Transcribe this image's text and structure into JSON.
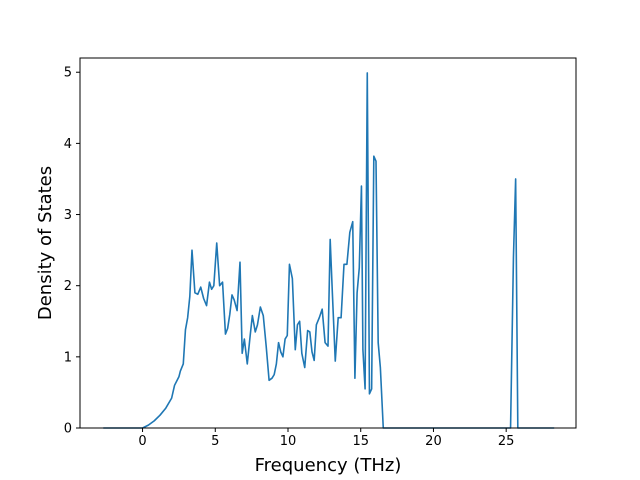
{
  "chart_data": {
    "type": "line",
    "xlabel": "Frequency (THz)",
    "ylabel": "Density of States",
    "xlim": [
      -4.3,
      29.8
    ],
    "ylim": [
      0,
      5.2
    ],
    "xticks": [
      0,
      5,
      10,
      15,
      20,
      25
    ],
    "yticks": [
      0,
      1,
      2,
      3,
      4,
      5
    ],
    "grid": false,
    "series": [
      {
        "color": "#1f77b4",
        "x": [
          -2.7,
          -2.0,
          -1.0,
          0.0,
          0.4,
          0.8,
          1.2,
          1.6,
          2.0,
          2.2,
          2.5,
          2.6,
          2.8,
          2.95,
          3.1,
          3.25,
          3.4,
          3.6,
          3.8,
          4.0,
          4.2,
          4.4,
          4.6,
          4.75,
          4.9,
          5.1,
          5.3,
          5.5,
          5.7,
          5.85,
          6.0,
          6.15,
          6.3,
          6.5,
          6.7,
          6.85,
          7.0,
          7.2,
          7.4,
          7.55,
          7.75,
          7.9,
          8.1,
          8.3,
          8.5,
          8.7,
          8.9,
          9.05,
          9.2,
          9.35,
          9.5,
          9.65,
          9.8,
          9.95,
          10.1,
          10.3,
          10.5,
          10.65,
          10.8,
          10.95,
          11.15,
          11.35,
          11.5,
          11.65,
          11.8,
          11.95,
          12.15,
          12.35,
          12.55,
          12.75,
          12.9,
          13.05,
          13.25,
          13.45,
          13.65,
          13.85,
          14.05,
          14.25,
          14.45,
          14.6,
          14.75,
          14.9,
          15.05,
          15.15,
          15.3,
          15.45,
          15.6,
          15.75,
          15.9,
          16.05,
          16.2,
          16.35,
          16.55,
          16.75,
          17.0,
          20.0,
          23.0,
          25.3,
          25.5,
          25.65,
          25.8,
          25.95,
          26.2,
          28.3
        ],
        "y": [
          0,
          0,
          0,
          0,
          0.04,
          0.1,
          0.18,
          0.28,
          0.42,
          0.6,
          0.72,
          0.8,
          0.9,
          1.38,
          1.55,
          1.85,
          2.5,
          1.9,
          1.88,
          1.98,
          1.82,
          1.72,
          2.05,
          1.95,
          2.0,
          2.6,
          2.0,
          2.05,
          1.32,
          1.4,
          1.6,
          1.87,
          1.8,
          1.65,
          2.33,
          1.05,
          1.25,
          0.9,
          1.3,
          1.58,
          1.35,
          1.45,
          1.7,
          1.58,
          1.15,
          0.67,
          0.7,
          0.75,
          0.9,
          1.2,
          1.07,
          1.0,
          1.25,
          1.3,
          2.3,
          2.1,
          1.1,
          1.45,
          1.5,
          1.05,
          0.85,
          1.37,
          1.35,
          1.07,
          0.95,
          1.45,
          1.55,
          1.67,
          1.2,
          1.15,
          2.65,
          1.9,
          0.94,
          1.55,
          1.55,
          2.3,
          2.3,
          2.75,
          2.9,
          0.7,
          1.9,
          2.25,
          3.4,
          1.1,
          0.55,
          4.99,
          0.48,
          0.55,
          3.82,
          3.75,
          1.2,
          0.85,
          0,
          0,
          0,
          0,
          0,
          0,
          2.4,
          3.5,
          0,
          0,
          0,
          0
        ]
      }
    ]
  }
}
